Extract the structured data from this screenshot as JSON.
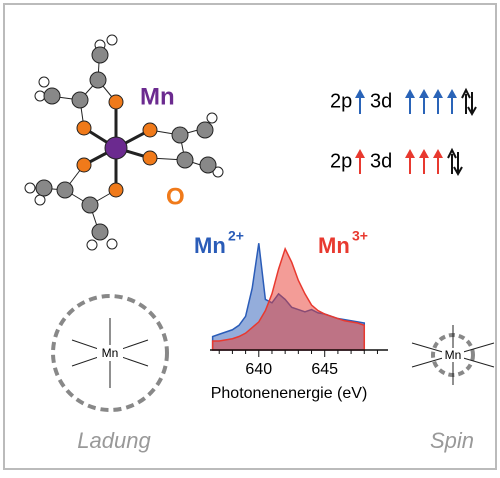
{
  "molecule": {
    "metal_label": "Mn",
    "oxygen_label": "O"
  },
  "orbitals": [
    {
      "core": "2p",
      "valence": "3d",
      "color": "#2a64b8"
    },
    {
      "core": "2p",
      "valence": "3d",
      "color": "#e8392f"
    }
  ],
  "spectrum": {
    "type": "area",
    "xlabel": "Photonenenergie (eV)",
    "xlim": [
      636.3,
      649.8
    ],
    "xticks": [
      640,
      645
    ],
    "minor_xticks": [
      637,
      638,
      639,
      641,
      642,
      643,
      644,
      646,
      647,
      648,
      649
    ],
    "ylim": [
      0,
      1.05
    ],
    "x": [
      636.5,
      637,
      637.5,
      638,
      638.5,
      639,
      639.5,
      640,
      640.5,
      641,
      641.5,
      642,
      642.5,
      643,
      643.5,
      644,
      644.5,
      645,
      645.5,
      646,
      646.5,
      647,
      647.5,
      648
    ],
    "series": [
      {
        "name": "Mn",
        "charge": "2+",
        "color": "#2a5cb8",
        "values": [
          0.12,
          0.14,
          0.16,
          0.18,
          0.22,
          0.3,
          0.55,
          0.95,
          0.45,
          0.42,
          0.5,
          0.45,
          0.38,
          0.36,
          0.34,
          0.36,
          0.33,
          0.32,
          0.3,
          0.28,
          0.27,
          0.26,
          0.25,
          0.24
        ]
      },
      {
        "name": "Mn",
        "charge": "3+",
        "color": "#e8392f",
        "values": [
          0.08,
          0.08,
          0.09,
          0.1,
          0.12,
          0.15,
          0.2,
          0.25,
          0.35,
          0.5,
          0.72,
          0.9,
          0.78,
          0.62,
          0.5,
          0.4,
          0.35,
          0.32,
          0.3,
          0.28,
          0.26,
          0.25,
          0.24,
          0.22
        ]
      }
    ]
  },
  "ions": {
    "left_label": "Mn",
    "right_label": "Mn"
  },
  "captions": {
    "left": "Ladung",
    "right": "Spin"
  }
}
